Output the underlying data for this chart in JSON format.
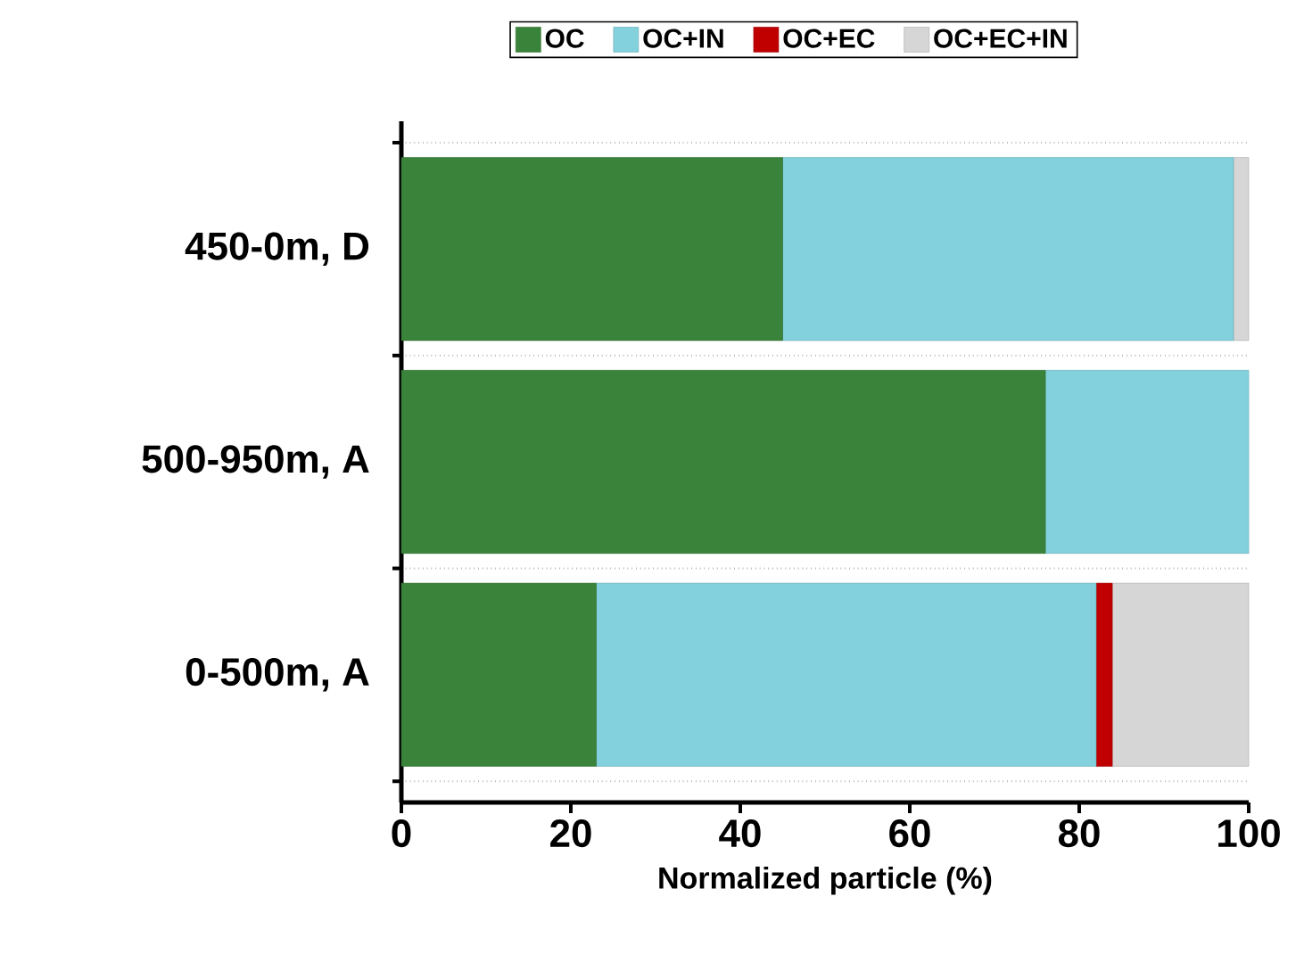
{
  "chart_data": {
    "type": "bar",
    "orientation": "horizontal",
    "stacked": true,
    "categories": [
      "450-0m, D",
      "500-950m, A",
      "0-500m, A"
    ],
    "series": [
      {
        "name": "OC",
        "color": "#3a833a",
        "values": [
          45,
          76,
          23
        ]
      },
      {
        "name": "OC+IN",
        "color": "#82d1dc",
        "values": [
          53.2,
          24,
          59
        ]
      },
      {
        "name": "OC+EC",
        "color": "#c00000",
        "values": [
          0,
          0,
          1.9
        ]
      },
      {
        "name": "OC+EC+IN",
        "color": "#d6d6d6",
        "values": [
          1.8,
          0,
          16.1
        ]
      }
    ],
    "xlabel": "Normalized particle (%)",
    "xlim": [
      0,
      100
    ],
    "xticks": [
      0,
      20,
      40,
      60,
      80,
      100
    ],
    "grid": "y",
    "legend": "top"
  }
}
